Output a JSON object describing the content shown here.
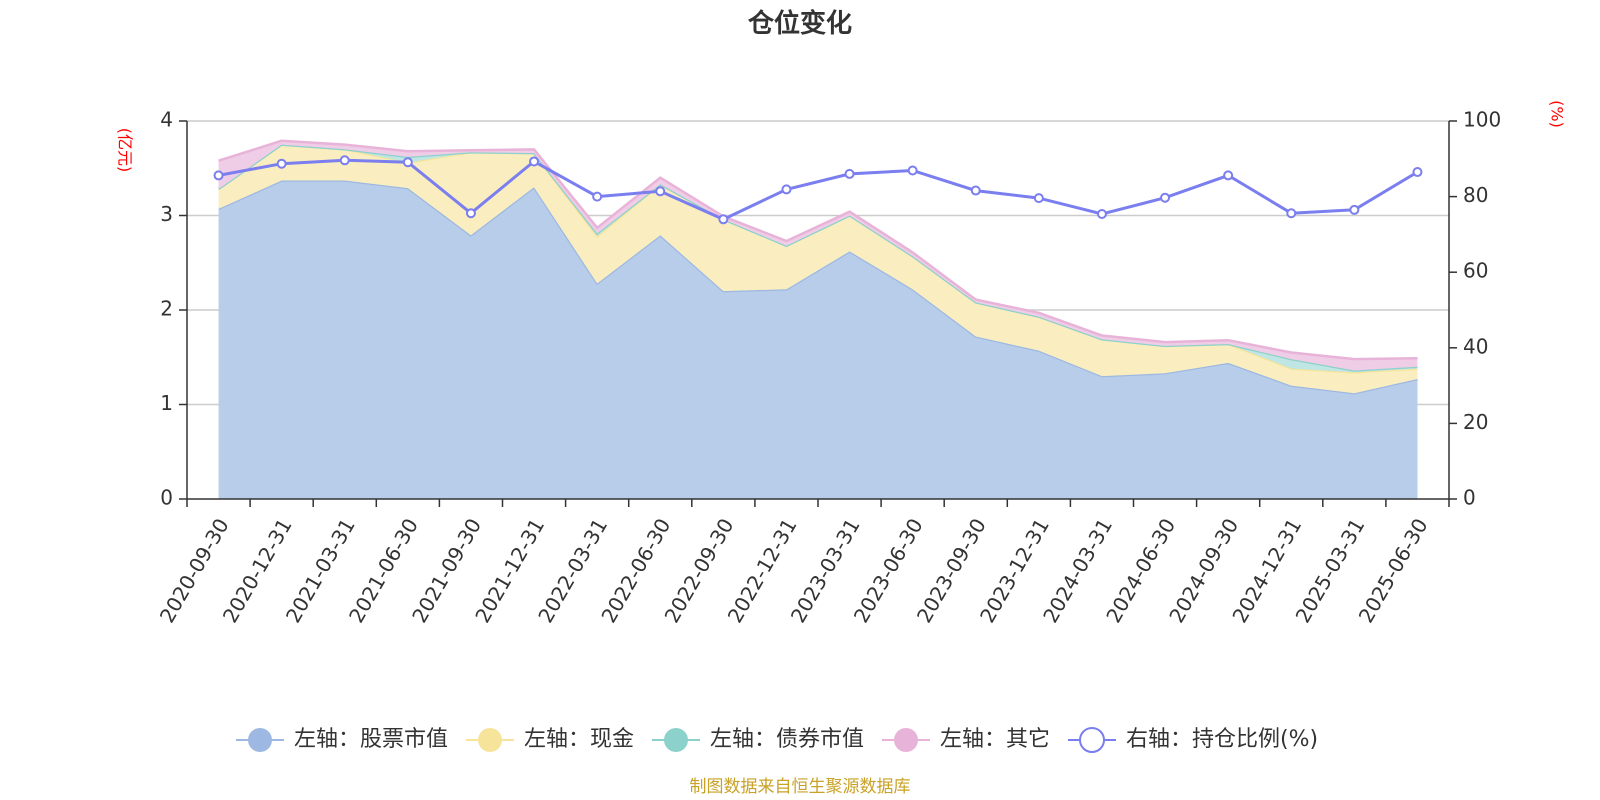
{
  "chart_data": {
    "type": "area",
    "title": "仓位变化",
    "left_axis": {
      "unit": "(亿元)",
      "range": [
        0,
        4
      ],
      "ticks": [
        "0",
        "1",
        "2",
        "3",
        "4"
      ]
    },
    "right_axis": {
      "unit": "(%)",
      "range": [
        0,
        100
      ],
      "ticks": [
        "0",
        "20",
        "40",
        "60",
        "80",
        "100"
      ]
    },
    "grid": true,
    "legend_position": "bottom",
    "categories": [
      "2020-09-30",
      "2020-12-31",
      "2021-03-31",
      "2021-06-30",
      "2021-09-30",
      "2021-12-31",
      "2022-03-31",
      "2022-06-30",
      "2022-09-30",
      "2022-12-31",
      "2023-03-31",
      "2023-06-30",
      "2023-09-30",
      "2023-12-31",
      "2024-03-31",
      "2024-06-30",
      "2024-09-30",
      "2024-12-31",
      "2025-03-31",
      "2025-06-30"
    ],
    "series": [
      {
        "name": "左轴：股票市值",
        "axis": "left",
        "kind": "stacked-area",
        "color": "#9db8e2",
        "fill": "#b8cdea",
        "values": [
          3.07,
          3.37,
          3.37,
          3.29,
          2.79,
          3.3,
          2.28,
          2.79,
          2.2,
          2.22,
          2.62,
          2.22,
          1.72,
          1.57,
          1.3,
          1.33,
          1.44,
          1.2,
          1.12,
          1.27
        ]
      },
      {
        "name": "左轴：现金",
        "axis": "left",
        "kind": "stacked-area",
        "color": "#f7e49b",
        "fill": "#faeec0",
        "values": [
          0.21,
          0.38,
          0.33,
          0.27,
          0.88,
          0.36,
          0.5,
          0.54,
          0.76,
          0.46,
          0.38,
          0.35,
          0.36,
          0.36,
          0.39,
          0.29,
          0.2,
          0.18,
          0.22,
          0.11
        ]
      },
      {
        "name": "左轴：债券市值",
        "axis": "left",
        "kind": "stacked-area",
        "color": "#8dd1cc",
        "fill": "#bfe6e2",
        "values": [
          0,
          0,
          0,
          0.06,
          0,
          0,
          0.03,
          0,
          0,
          0,
          0,
          0,
          0,
          0,
          0,
          0,
          0,
          0.1,
          0.02,
          0.02
        ]
      },
      {
        "name": "左轴：其它",
        "axis": "left",
        "kind": "stacked-area",
        "color": "#e8b3d8",
        "fill": "#f0cde6",
        "values": [
          0.3,
          0.04,
          0.05,
          0.06,
          0.02,
          0.04,
          0.06,
          0.07,
          0.03,
          0.05,
          0.04,
          0.04,
          0.03,
          0.04,
          0.04,
          0.04,
          0.04,
          0.07,
          0.12,
          0.09
        ]
      },
      {
        "name": "右轴：持仓比例(%)",
        "axis": "right",
        "kind": "line",
        "color": "#7a7eee",
        "values": [
          85.6,
          88.7,
          89.6,
          89.1,
          75.6,
          89.3,
          80.0,
          81.4,
          74.0,
          81.9,
          86.0,
          86.9,
          81.6,
          79.6,
          75.4,
          79.7,
          85.6,
          75.6,
          76.5,
          86.5
        ]
      }
    ],
    "source": "制图数据来自恒生聚源数据库"
  }
}
